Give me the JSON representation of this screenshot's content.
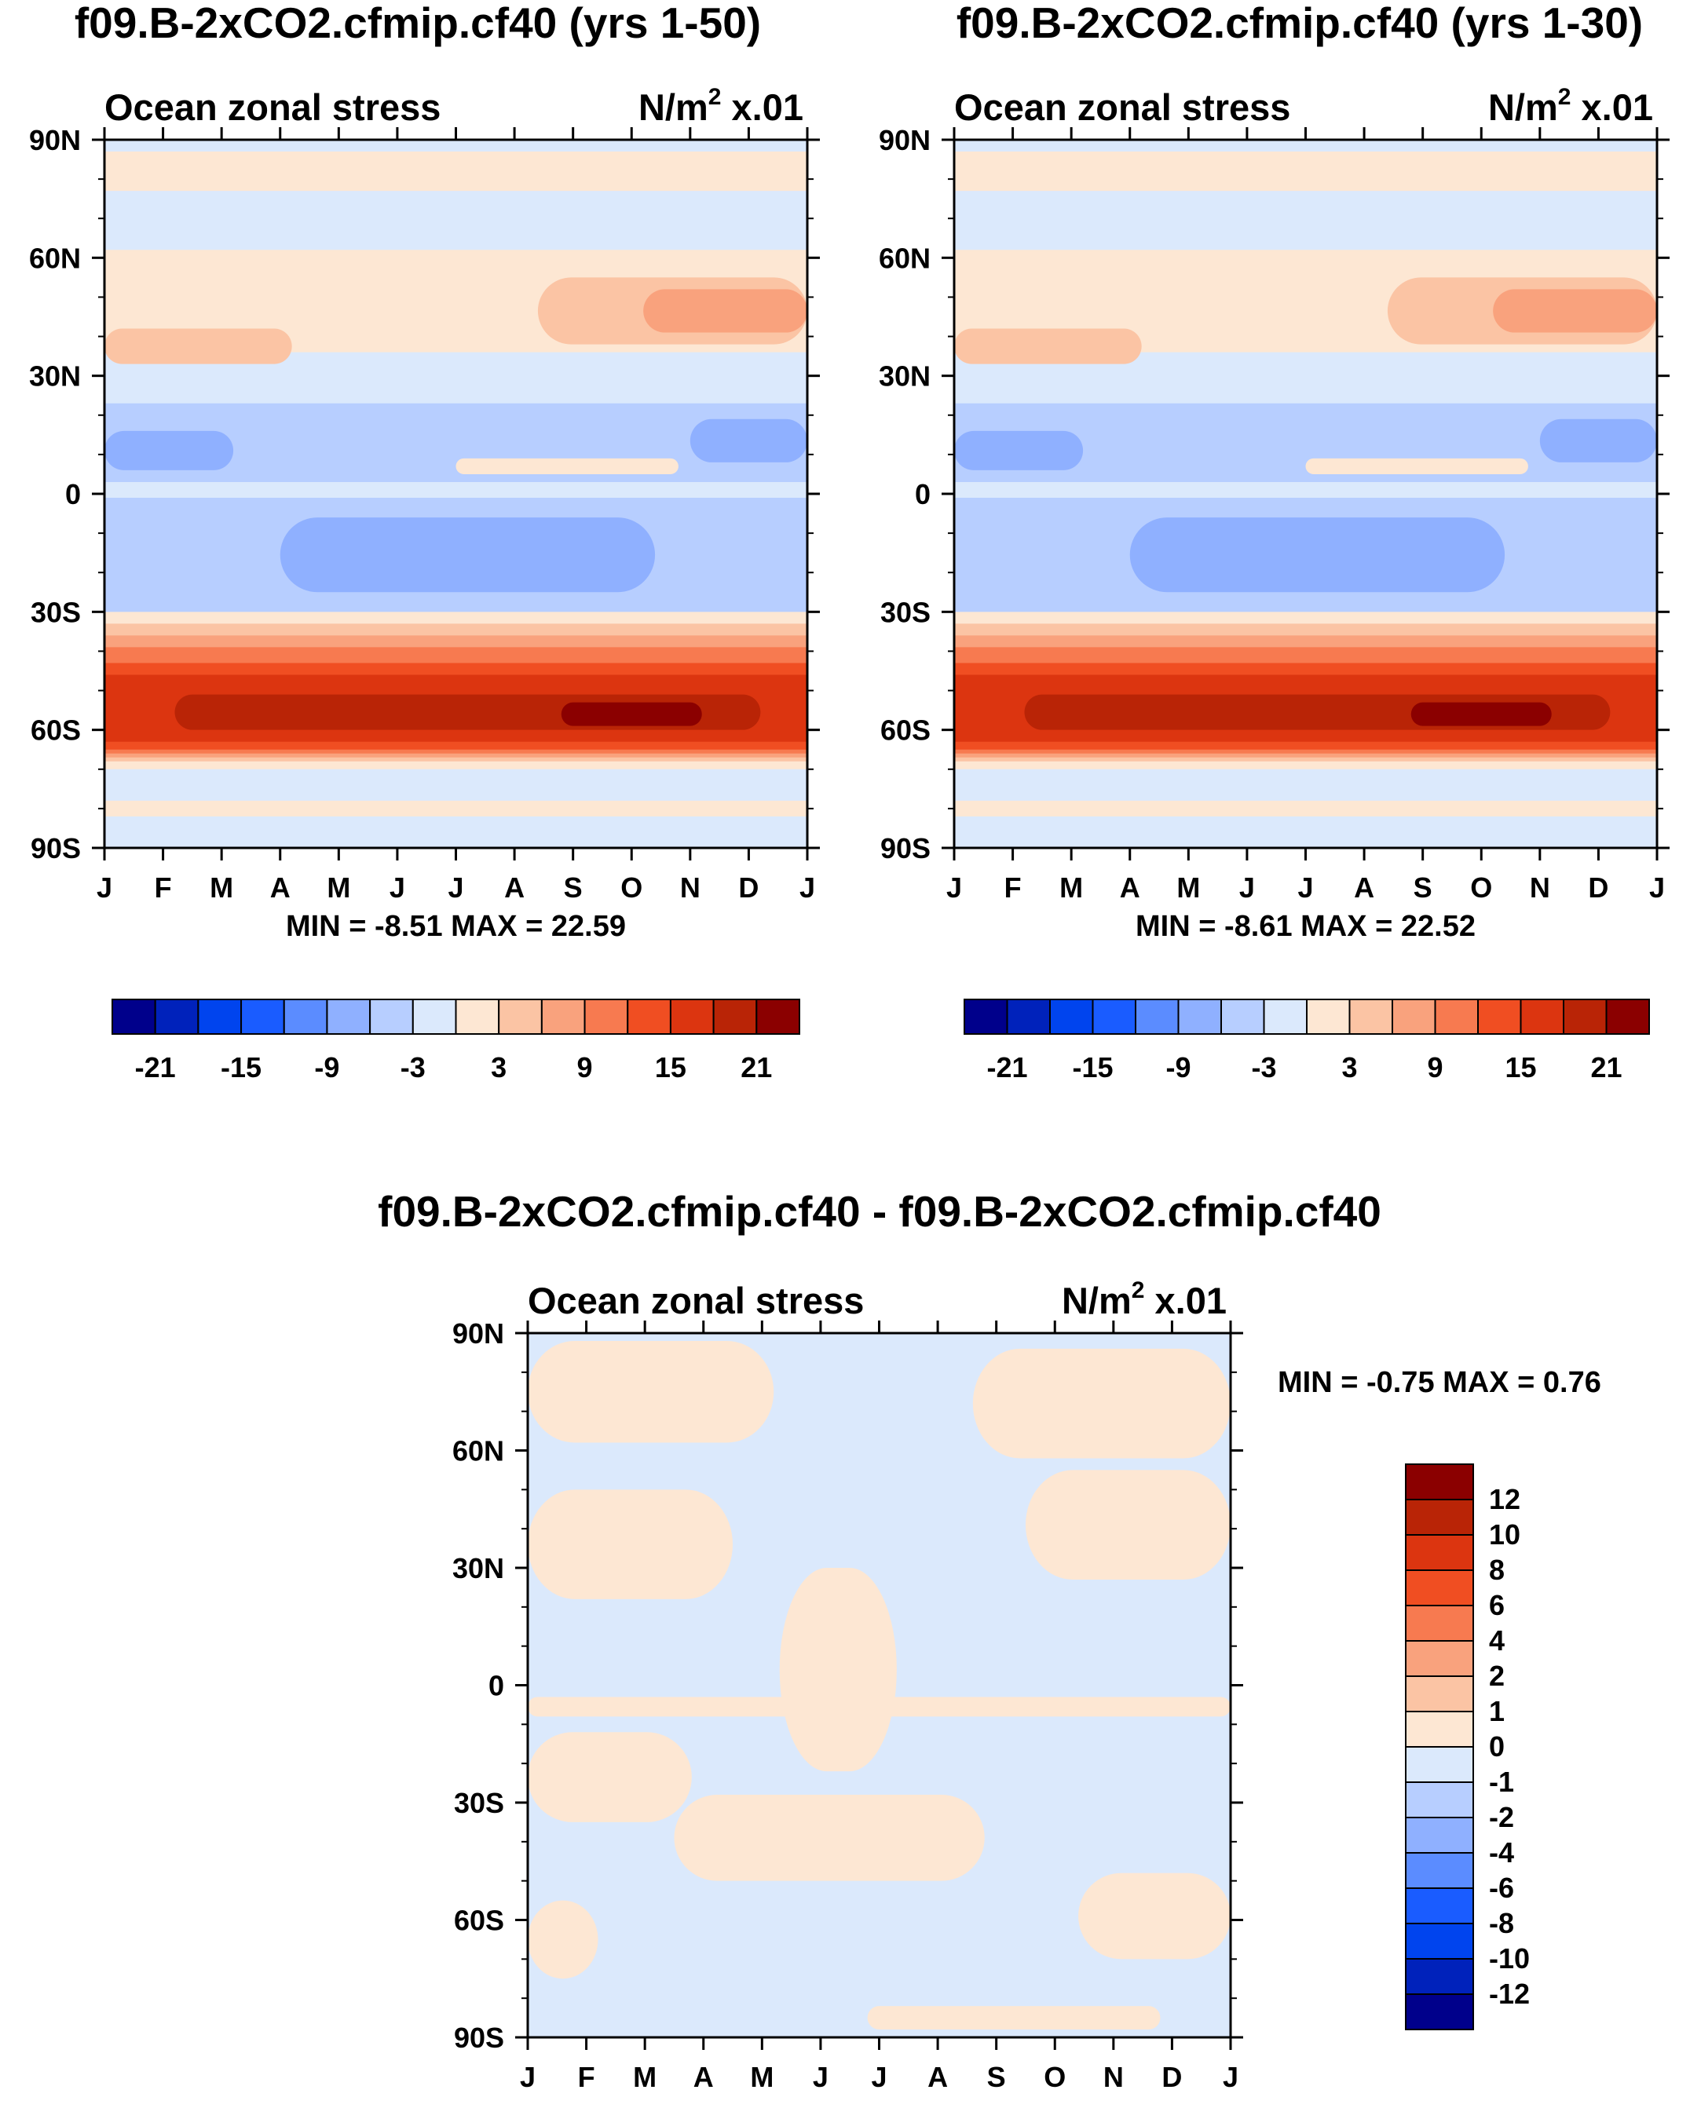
{
  "figure": {
    "panel_a_title": "f09.B-2xCO2.cfmip.cf40 (yrs 1-50)",
    "panel_b_title": "f09.B-2xCO2.cfmip.cf40 (yrs 1-30)",
    "panel_c_title": "f09.B-2xCO2.cfmip.cf40 - f09.B-2xCO2.cfmip.cf40"
  },
  "chart_data": [
    {
      "type": "heatmap",
      "title": "f09.B-2xCO2.cfmip.cf40 (yrs 1-50)",
      "left_label": "Ocean zonal stress",
      "units_main": "N/m",
      "units_sup": "2",
      "units_tail": "x.01",
      "x_ticks": [
        "J",
        "F",
        "M",
        "A",
        "M",
        "J",
        "J",
        "A",
        "S",
        "O",
        "N",
        "D",
        "J"
      ],
      "y_ticks": [
        "90N",
        "60N",
        "30N",
        "0",
        "30S",
        "60S",
        "90S"
      ],
      "stats_text": "MIN =  -8.51 MAX =  22.59",
      "min": -8.51,
      "max": 22.59,
      "colorbar_labels": [
        "-21",
        "-15",
        "-9",
        "-3",
        "3",
        "9",
        "15",
        "21"
      ],
      "colorbar_colors": [
        "#00008b",
        "#0022bb",
        "#0044ee",
        "#1a5cff",
        "#5b8cff",
        "#8fb0ff",
        "#b7ceff",
        "#dbe9fc",
        "#fde7d3",
        "#fbc4a4",
        "#f9a27d",
        "#f77a50",
        "#f04e22",
        "#dc3510",
        "#b92406",
        "#8b0000"
      ],
      "bands": [
        {
          "lat": [
            77,
            87
          ],
          "color": "#fde7d3"
        },
        {
          "lat": [
            36,
            62
          ],
          "color": "#fde7d3"
        },
        {
          "lat": [
            33,
            42
          ],
          "color": "#fbc4a4",
          "months": [
            0,
            3.2
          ]
        },
        {
          "lat": [
            38,
            55
          ],
          "color": "#fbc4a4",
          "months": [
            7.4,
            12
          ]
        },
        {
          "lat": [
            41,
            52
          ],
          "color": "#f9a27d",
          "months": [
            9.2,
            12
          ]
        },
        {
          "lat": [
            3,
            23
          ],
          "color": "#b7ceff"
        },
        {
          "lat": [
            6,
            16
          ],
          "color": "#8fb0ff",
          "months": [
            0,
            2.2
          ]
        },
        {
          "lat": [
            8,
            19
          ],
          "color": "#8fb0ff",
          "months": [
            10,
            12
          ]
        },
        {
          "lat": [
            5,
            9
          ],
          "color": "#fde7d3",
          "months": [
            6,
            9.8
          ]
        },
        {
          "lat": [
            -34,
            -1
          ],
          "color": "#b7ceff"
        },
        {
          "lat": [
            -25,
            -6
          ],
          "color": "#8fb0ff",
          "months": [
            3,
            9.4
          ]
        },
        {
          "lat": [
            -70,
            -30
          ],
          "color": "#fde7d3"
        },
        {
          "lat": [
            -68,
            -33
          ],
          "color": "#fbc4a4"
        },
        {
          "lat": [
            -67,
            -36
          ],
          "color": "#f9a27d"
        },
        {
          "lat": [
            -66,
            -39
          ],
          "color": "#f77a50"
        },
        {
          "lat": [
            -65,
            -43
          ],
          "color": "#f04e22"
        },
        {
          "lat": [
            -63,
            -46
          ],
          "color": "#dc3510"
        },
        {
          "lat": [
            -60,
            -51
          ],
          "color": "#b92406",
          "months": [
            1.2,
            11.2
          ]
        },
        {
          "lat": [
            -59,
            -53
          ],
          "color": "#8b0000",
          "months": [
            7.8,
            10.2
          ]
        },
        {
          "lat": [
            -82,
            -78
          ],
          "color": "#fde7d3"
        }
      ]
    },
    {
      "type": "heatmap",
      "title": "f09.B-2xCO2.cfmip.cf40 (yrs 1-30)",
      "left_label": "Ocean zonal stress",
      "units_main": "N/m",
      "units_sup": "2",
      "units_tail": "x.01",
      "x_ticks": [
        "J",
        "F",
        "M",
        "A",
        "M",
        "J",
        "J",
        "A",
        "S",
        "O",
        "N",
        "D",
        "J"
      ],
      "y_ticks": [
        "90N",
        "60N",
        "30N",
        "0",
        "30S",
        "60S",
        "90S"
      ],
      "stats_text": "MIN =  -8.61 MAX =  22.52",
      "min": -8.61,
      "max": 22.52,
      "colorbar_labels": [
        "-21",
        "-15",
        "-9",
        "-3",
        "3",
        "9",
        "15",
        "21"
      ],
      "colorbar_colors": [
        "#00008b",
        "#0022bb",
        "#0044ee",
        "#1a5cff",
        "#5b8cff",
        "#8fb0ff",
        "#b7ceff",
        "#dbe9fc",
        "#fde7d3",
        "#fbc4a4",
        "#f9a27d",
        "#f77a50",
        "#f04e22",
        "#dc3510",
        "#b92406",
        "#8b0000"
      ],
      "bands": [
        {
          "lat": [
            77,
            87
          ],
          "color": "#fde7d3"
        },
        {
          "lat": [
            36,
            62
          ],
          "color": "#fde7d3"
        },
        {
          "lat": [
            33,
            42
          ],
          "color": "#fbc4a4",
          "months": [
            0,
            3.2
          ]
        },
        {
          "lat": [
            38,
            55
          ],
          "color": "#fbc4a4",
          "months": [
            7.4,
            12
          ]
        },
        {
          "lat": [
            41,
            52
          ],
          "color": "#f9a27d",
          "months": [
            9.2,
            12
          ]
        },
        {
          "lat": [
            3,
            23
          ],
          "color": "#b7ceff"
        },
        {
          "lat": [
            6,
            16
          ],
          "color": "#8fb0ff",
          "months": [
            0,
            2.2
          ]
        },
        {
          "lat": [
            8,
            19
          ],
          "color": "#8fb0ff",
          "months": [
            10,
            12
          ]
        },
        {
          "lat": [
            5,
            9
          ],
          "color": "#fde7d3",
          "months": [
            6,
            9.8
          ]
        },
        {
          "lat": [
            -34,
            -1
          ],
          "color": "#b7ceff"
        },
        {
          "lat": [
            -25,
            -6
          ],
          "color": "#8fb0ff",
          "months": [
            3,
            9.4
          ]
        },
        {
          "lat": [
            -70,
            -30
          ],
          "color": "#fde7d3"
        },
        {
          "lat": [
            -68,
            -33
          ],
          "color": "#fbc4a4"
        },
        {
          "lat": [
            -67,
            -36
          ],
          "color": "#f9a27d"
        },
        {
          "lat": [
            -66,
            -39
          ],
          "color": "#f77a50"
        },
        {
          "lat": [
            -65,
            -43
          ],
          "color": "#f04e22"
        },
        {
          "lat": [
            -63,
            -46
          ],
          "color": "#dc3510"
        },
        {
          "lat": [
            -60,
            -51
          ],
          "color": "#b92406",
          "months": [
            1.2,
            11.2
          ]
        },
        {
          "lat": [
            -59,
            -53
          ],
          "color": "#8b0000",
          "months": [
            7.8,
            10.2
          ]
        },
        {
          "lat": [
            -82,
            -78
          ],
          "color": "#fde7d3"
        }
      ]
    },
    {
      "type": "heatmap",
      "title": "f09.B-2xCO2.cfmip.cf40 - f09.B-2xCO2.cfmip.cf40",
      "left_label": "Ocean zonal stress",
      "units_main": "N/m",
      "units_sup": "2",
      "units_tail": "x.01",
      "x_ticks": [
        "J",
        "F",
        "M",
        "A",
        "M",
        "J",
        "J",
        "A",
        "S",
        "O",
        "N",
        "D",
        "J"
      ],
      "y_ticks": [
        "90N",
        "60N",
        "30N",
        "0",
        "30S",
        "60S",
        "90S"
      ],
      "stats_text": "MIN =  -0.75 MAX =   0.76",
      "min": -0.75,
      "max": 0.76,
      "colorbar_labels": [
        "12",
        "10",
        "8",
        "6",
        "4",
        "2",
        "1",
        "0",
        "-1",
        "-2",
        "-4",
        "-6",
        "-8",
        "-10",
        "-12"
      ],
      "colorbar_colors": [
        "#8b0000",
        "#b92406",
        "#dc3510",
        "#f04e22",
        "#f77a50",
        "#f9a27d",
        "#fbc4a4",
        "#fde7d3",
        "#dbe9fc",
        "#b7ceff",
        "#8fb0ff",
        "#5b8cff",
        "#1a5cff",
        "#0044ee",
        "#0022bb",
        "#00008b"
      ],
      "bands": [
        {
          "lat": [
            62,
            88
          ],
          "color": "#fde7d3",
          "months": [
            0,
            4.2
          ]
        },
        {
          "lat": [
            58,
            86
          ],
          "color": "#fde7d3",
          "months": [
            7.6,
            12
          ]
        },
        {
          "lat": [
            22,
            50
          ],
          "color": "#fde7d3",
          "months": [
            0,
            3.5
          ]
        },
        {
          "lat": [
            27,
            55
          ],
          "color": "#fde7d3",
          "months": [
            8.5,
            12
          ]
        },
        {
          "lat": [
            -22,
            30
          ],
          "color": "#fde7d3",
          "months": [
            4.3,
            6.3
          ]
        },
        {
          "lat": [
            -8,
            -3
          ],
          "color": "#fde7d3",
          "months": [
            0,
            12
          ]
        },
        {
          "lat": [
            -35,
            -12
          ],
          "color": "#fde7d3",
          "months": [
            0,
            2.8
          ]
        },
        {
          "lat": [
            -50,
            -28
          ],
          "color": "#fde7d3",
          "months": [
            2.5,
            7.8
          ]
        },
        {
          "lat": [
            -70,
            -48
          ],
          "color": "#fde7d3",
          "months": [
            9.4,
            12
          ]
        },
        {
          "lat": [
            -75,
            -55
          ],
          "color": "#fde7d3",
          "months": [
            0,
            1.2
          ]
        },
        {
          "lat": [
            -88,
            -82
          ],
          "color": "#fde7d3",
          "months": [
            5.8,
            10.8
          ]
        }
      ]
    }
  ]
}
